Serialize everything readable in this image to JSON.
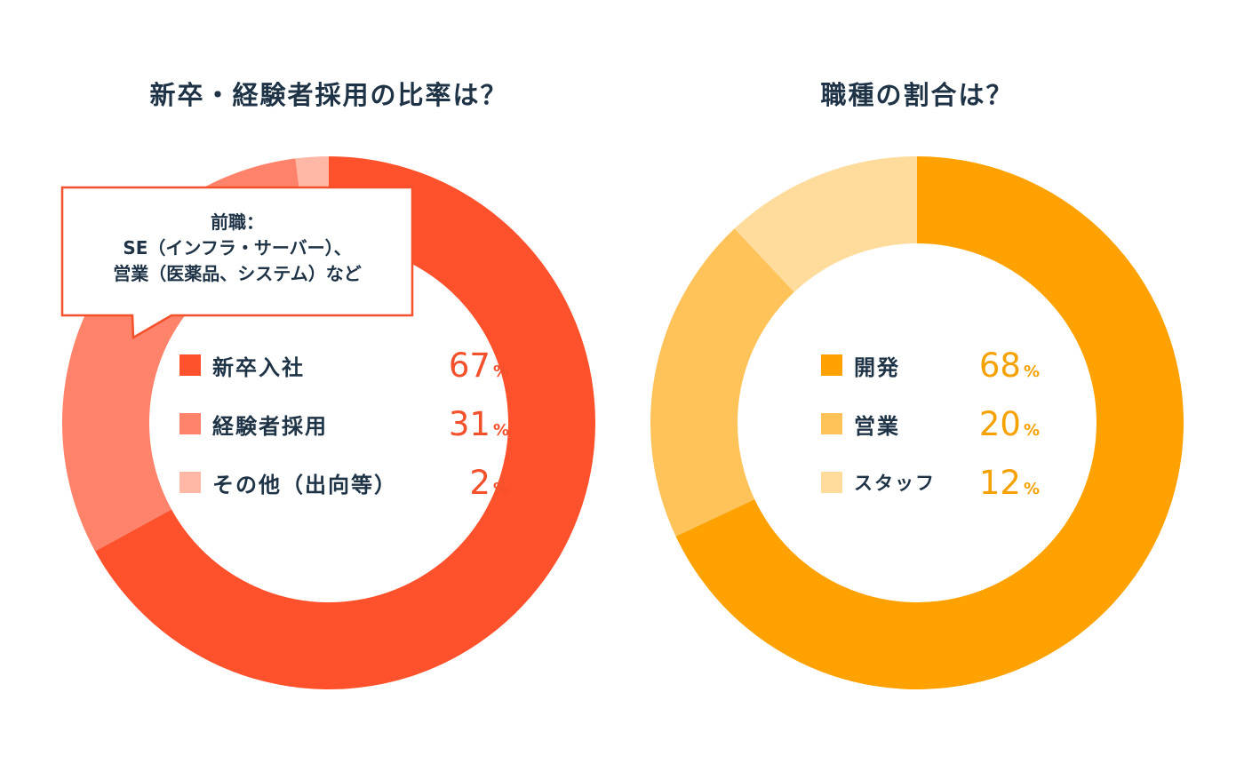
{
  "charts": [
    {
      "title": "新卒・経験者採用の比率は？",
      "chart_data": {
        "type": "pie",
        "title": "新卒・経験者採用の比率は？",
        "categories": [
          "新卒入社",
          "経験者採用",
          "その他（出向等）"
        ],
        "values": [
          67,
          31,
          2
        ],
        "colors": [
          "#ff512b",
          "#ff836a",
          "#ffb8a6"
        ],
        "unit": "%"
      },
      "legend": [
        {
          "label": "新卒入社",
          "value": "67",
          "unit": "%"
        },
        {
          "label": "経験者採用",
          "value": "31",
          "unit": "%"
        },
        {
          "label": "その他（出向等）",
          "value": "2",
          "unit": "%"
        }
      ],
      "callout": {
        "line1": "前職：",
        "line2": "SE（インフラ・サーバー）、",
        "line3": "営業（医薬品、システム）など"
      }
    },
    {
      "title": "職種の割合は？",
      "chart_data": {
        "type": "pie",
        "title": "職種の割合は？",
        "categories": [
          "開発",
          "営業",
          "スタッフ"
        ],
        "values": [
          68,
          20,
          12
        ],
        "colors": [
          "#ffa200",
          "#ffc35a",
          "#ffdb9c"
        ],
        "unit": "%"
      },
      "legend": [
        {
          "label": "開発",
          "value": "68",
          "unit": "%"
        },
        {
          "label": "営業",
          "value": "20",
          "unit": "%"
        },
        {
          "label": "スタッフ",
          "value": "12",
          "unit": "%"
        }
      ]
    }
  ],
  "colors": {
    "text": "#1f3347",
    "accent_red": "#f3502b",
    "accent_orange": "#f5a200",
    "callout_border": "#f3502b"
  }
}
